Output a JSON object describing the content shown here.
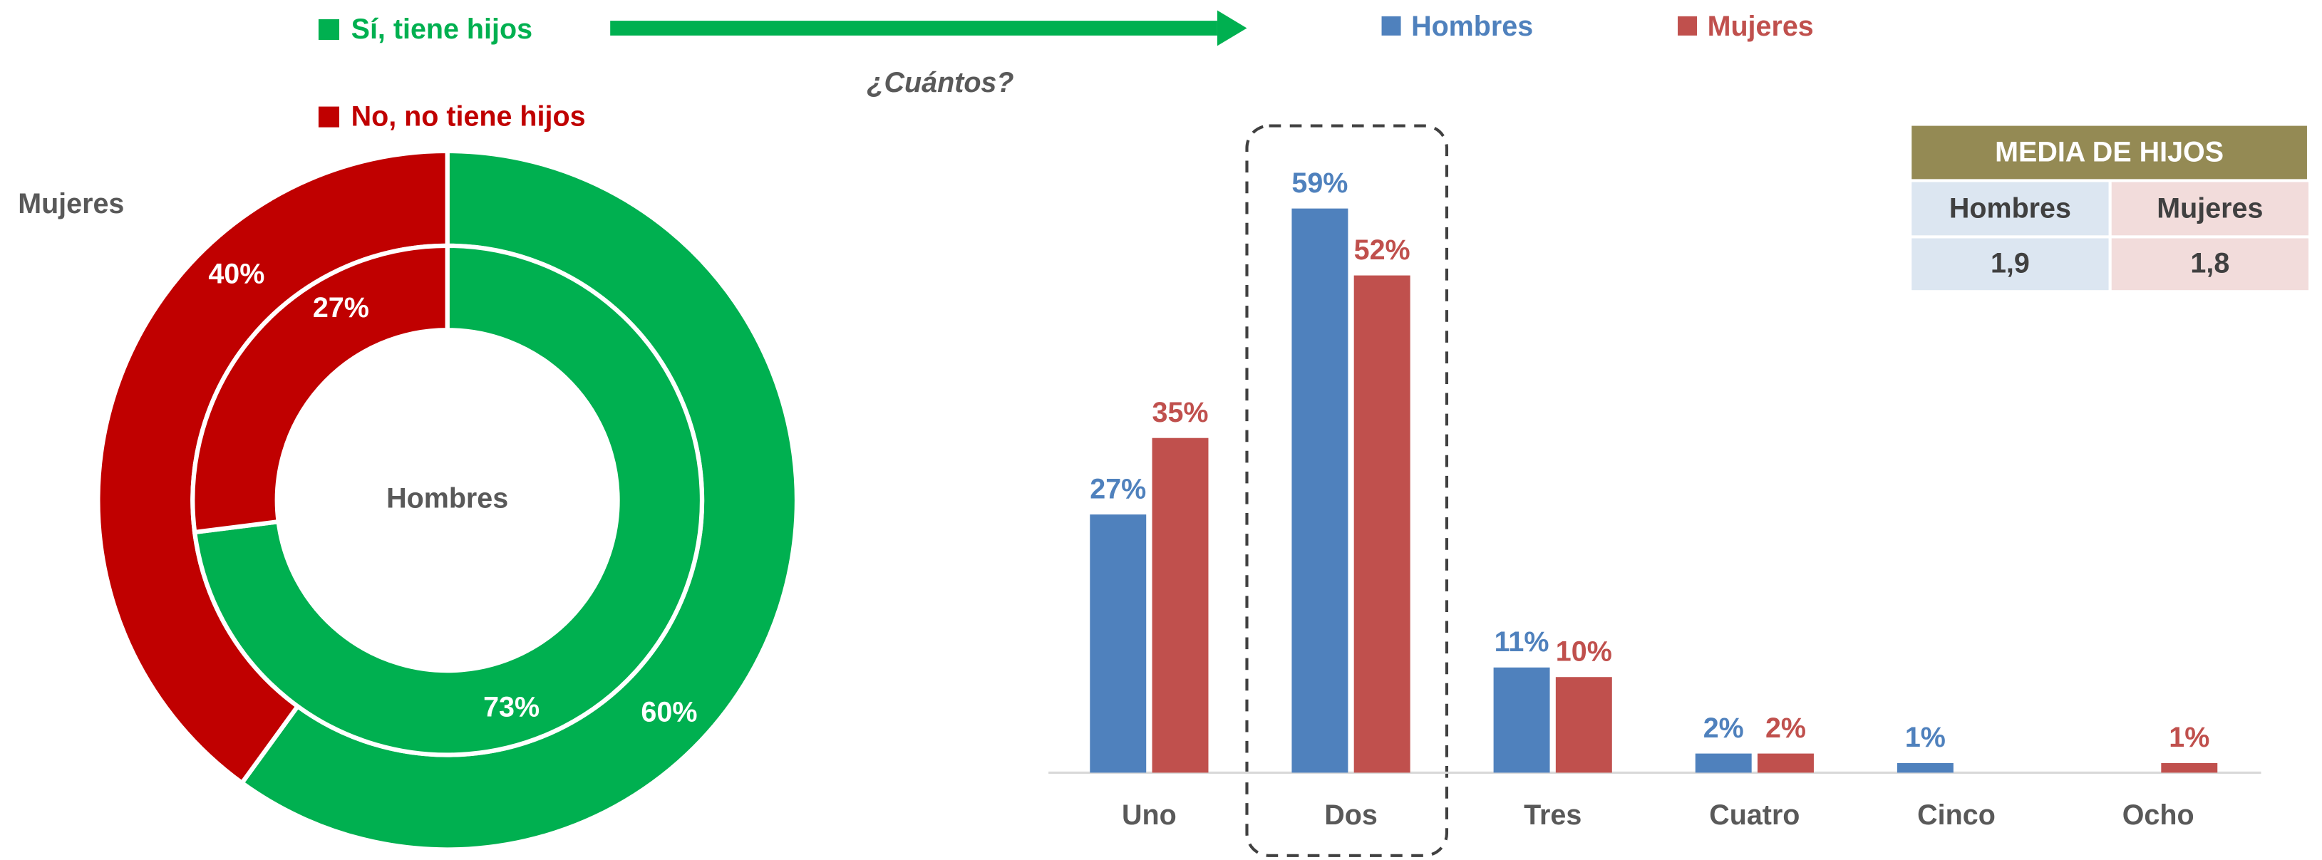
{
  "chart_data": [
    {
      "type": "doughnut",
      "categories": [
        "Sí, tiene hijos",
        "No, no tiene hijos"
      ],
      "colors": [
        "#00b050",
        "#c00000"
      ],
      "series": [
        {
          "name": "Mujeres",
          "values": [
            60,
            40
          ],
          "value_labels": [
            "60%",
            "40%"
          ]
        },
        {
          "name": "Hombres",
          "values": [
            73,
            27
          ],
          "value_labels": [
            "73%",
            "27%"
          ]
        }
      ]
    },
    {
      "type": "bar",
      "annotation": "¿Cuántos?",
      "categories": [
        "Uno",
        "Dos",
        "Tres",
        "Cuatro",
        "Cinco",
        "Ocho"
      ],
      "ylim": [
        0,
        60
      ],
      "series": [
        {
          "name": "Hombres",
          "color": "#4f81bd",
          "values": [
            27,
            59,
            11,
            2,
            1,
            null
          ],
          "value_labels": [
            "27%",
            "59%",
            "11%",
            "2%",
            "1%",
            null
          ]
        },
        {
          "name": "Mujeres",
          "color": "#c0504d",
          "values": [
            35,
            52,
            10,
            2,
            null,
            1
          ],
          "value_labels": [
            "35%",
            "52%",
            "10%",
            "2%",
            null,
            "1%"
          ]
        }
      ]
    }
  ],
  "table": {
    "title": "MEDIA DE HIJOS",
    "header": [
      "Hombres",
      "Mujeres"
    ],
    "rows": [
      [
        "1,9",
        "1,8"
      ]
    ]
  }
}
